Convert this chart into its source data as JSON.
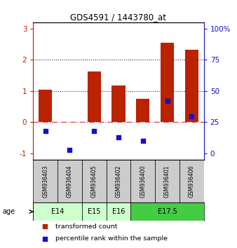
{
  "title": "GDS4591 / 1443780_at",
  "samples": [
    "GSM936403",
    "GSM936404",
    "GSM936405",
    "GSM936402",
    "GSM936400",
    "GSM936401",
    "GSM936406"
  ],
  "transformed_counts": [
    1.05,
    0.02,
    1.63,
    1.18,
    0.75,
    2.55,
    2.33
  ],
  "percentile_ranks_pct": [
    18,
    3,
    18,
    13,
    10,
    42,
    30
  ],
  "age_groups": [
    {
      "label": "E14",
      "span": [
        0,
        2
      ]
    },
    {
      "label": "E15",
      "span": [
        2,
        3
      ]
    },
    {
      "label": "E16",
      "span": [
        3,
        4
      ]
    },
    {
      "label": "E17.5",
      "span": [
        4,
        7
      ]
    }
  ],
  "ylim_left": [
    -1.2,
    3.2
  ],
  "left_ticks": [
    -1,
    0,
    1,
    2,
    3
  ],
  "right_ticks": [
    0,
    25,
    50,
    75,
    100
  ],
  "bar_color": "#bb2200",
  "scatter_color": "#1111cc",
  "zero_line_color": "#cc4444",
  "dotted_line_color": "#222222",
  "legend_red_label": "transformed count",
  "legend_blue_label": "percentile rank within the sample",
  "age_label": "age",
  "bg_color": "#cccccc",
  "E14_color": "#ccffcc",
  "E175_color": "#44cc44"
}
